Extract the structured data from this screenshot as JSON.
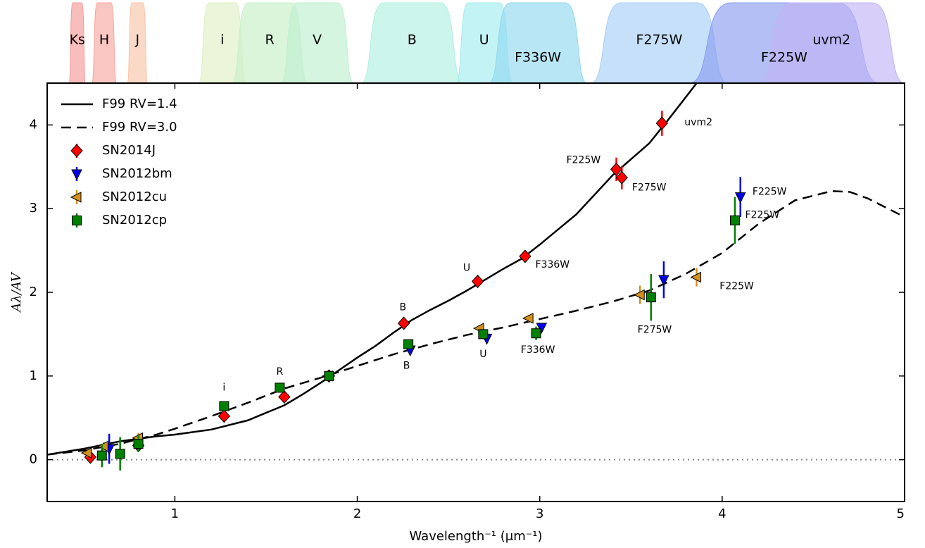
{
  "chart_data": {
    "type": "scatter",
    "x_label": "Wavelength⁻¹ (μm⁻¹)",
    "y_label": "Aλ/AV",
    "xlim": [
      0.3,
      5
    ],
    "ylim": [
      -0.5,
      4.5
    ],
    "xticks": [
      1,
      2,
      3,
      4,
      5
    ],
    "yticks": [
      0,
      1,
      2,
      3,
      4
    ],
    "reference_line": 0,
    "legend": "upper left",
    "filters": [
      {
        "name": "Ks",
        "range": [
          0.42,
          0.51
        ],
        "color": "#f49a9a"
      },
      {
        "name": "H",
        "range": [
          0.545,
          0.68
        ],
        "color": "#f6a8a0"
      },
      {
        "name": "J",
        "range": [
          0.74,
          0.85
        ],
        "color": "#f8c4a8"
      },
      {
        "name": "i",
        "range": [
          1.13,
          1.39
        ],
        "color": "#dff0c4"
      },
      {
        "name": "R",
        "range": [
          1.31,
          1.73
        ],
        "color": "#c8f0c8"
      },
      {
        "name": "V",
        "range": [
          1.58,
          1.98
        ],
        "color": "#bff0cf"
      },
      {
        "name": "B",
        "range": [
          2.02,
          2.58
        ],
        "color": "#b0f0e2"
      },
      {
        "name": "U",
        "range": [
          2.54,
          2.85
        ],
        "color": "#a4ecef"
      },
      {
        "name": "F336W",
        "range": [
          2.72,
          3.26
        ],
        "color": "#92d8ef"
      },
      {
        "name": "F275W",
        "range": [
          3.28,
          4.03
        ],
        "color": "#a8cff6"
      },
      {
        "name": "F225W",
        "range": [
          3.82,
          4.86
        ],
        "color": "#8a9cf0"
      },
      {
        "name": "uvm2",
        "range": [
          4.2,
          5.0
        ],
        "color": "#c2b4f6"
      }
    ],
    "series": [
      {
        "name": "F99 RV=1.4",
        "style": "solid",
        "color": "#000000",
        "x": [
          0.3,
          0.5,
          0.7,
          0.9,
          1.0,
          1.2,
          1.4,
          1.6,
          1.7,
          1.8,
          1.9,
          2.0,
          2.1,
          2.2,
          2.3,
          2.4,
          2.5,
          2.6,
          2.7,
          2.8,
          2.9,
          3.0,
          3.2,
          3.4,
          3.6,
          3.7,
          3.8,
          3.86
        ],
        "values": [
          0.06,
          0.13,
          0.22,
          0.28,
          0.3,
          0.36,
          0.47,
          0.65,
          0.78,
          0.92,
          1.07,
          1.22,
          1.36,
          1.52,
          1.67,
          1.79,
          1.9,
          2.02,
          2.15,
          2.28,
          2.4,
          2.57,
          2.93,
          3.4,
          3.78,
          4.05,
          4.33,
          4.5
        ]
      },
      {
        "name": "F99 RV=3.0",
        "style": "dashed",
        "color": "#000000",
        "x": [
          0.3,
          0.5,
          0.7,
          0.9,
          1.0,
          1.2,
          1.4,
          1.6,
          1.8,
          2.0,
          2.2,
          2.4,
          2.6,
          2.8,
          3.0,
          3.2,
          3.4,
          3.6,
          3.8,
          4.0,
          4.2,
          4.4,
          4.6,
          4.7,
          4.8,
          5.0
        ],
        "values": [
          0.06,
          0.11,
          0.19,
          0.3,
          0.37,
          0.52,
          0.68,
          0.85,
          0.98,
          1.12,
          1.26,
          1.38,
          1.49,
          1.58,
          1.68,
          1.78,
          1.89,
          2.02,
          2.22,
          2.47,
          2.82,
          3.1,
          3.21,
          3.2,
          3.12,
          2.9
        ]
      },
      {
        "name": "SN2014J",
        "marker": "diamond",
        "color": "#ff0000",
        "x": [
          0.537,
          0.8,
          1.27,
          1.6,
          1.845,
          2.255,
          2.66,
          2.92,
          3.42,
          3.45,
          3.67
        ],
        "values": [
          0.03,
          0.17,
          0.52,
          0.75,
          1.0,
          1.63,
          2.13,
          2.43,
          3.47,
          3.37,
          4.02
        ],
        "errors": [
          0.06,
          0.04,
          0.03,
          0.03,
          0.02,
          0.04,
          0.04,
          0.04,
          0.14,
          0.14,
          0.15
        ]
      },
      {
        "name": "SN2012bm",
        "marker": "triangle-down",
        "color": "#0000ee",
        "x": [
          0.64,
          2.29,
          2.71,
          3.01,
          3.68,
          4.1
        ],
        "values": [
          0.13,
          1.31,
          1.45,
          1.58,
          2.15,
          3.14
        ],
        "errors": [
          0.18,
          0.04,
          0.05,
          0.05,
          0.22,
          0.24
        ]
      },
      {
        "name": "SN2012cu",
        "marker": "triangle-left",
        "color": "#d4901c",
        "x": [
          0.52,
          0.61,
          0.8,
          1.84,
          2.67,
          2.94,
          3.55,
          3.86
        ],
        "values": [
          0.08,
          0.16,
          0.26,
          1.0,
          1.57,
          1.69,
          1.97,
          2.18
        ],
        "errors": [
          0.05,
          0.05,
          0.06,
          0.02,
          0.04,
          0.04,
          0.11,
          0.11
        ]
      },
      {
        "name": "SN2012cp",
        "marker": "square",
        "color": "#008000",
        "x": [
          0.6,
          0.7,
          0.8,
          1.27,
          1.575,
          1.845,
          2.28,
          2.69,
          2.98,
          3.61,
          4.07
        ],
        "values": [
          0.05,
          0.07,
          0.19,
          0.64,
          0.86,
          1.0,
          1.38,
          1.5,
          1.51,
          1.94,
          2.86
        ],
        "errors": [
          0.14,
          0.2,
          0.1,
          0.05,
          0.04,
          0.02,
          0.04,
          0.06,
          0.08,
          0.28,
          0.28
        ]
      }
    ],
    "annotations": [
      {
        "text": "uvm2",
        "x": 3.87,
        "y": 4.03
      },
      {
        "text": "F225W",
        "x": 3.24,
        "y": 3.58
      },
      {
        "text": "F275W",
        "x": 3.6,
        "y": 3.25
      },
      {
        "text": "F336W",
        "x": 3.07,
        "y": 2.33
      },
      {
        "text": "U",
        "x": 2.6,
        "y": 2.29
      },
      {
        "text": "B",
        "x": 2.25,
        "y": 1.82
      },
      {
        "text": "R",
        "x": 1.575,
        "y": 1.05
      },
      {
        "text": "i",
        "x": 1.27,
        "y": 0.86
      },
      {
        "text": "B",
        "x": 2.27,
        "y": 1.12
      },
      {
        "text": "U",
        "x": 2.69,
        "y": 1.26
      },
      {
        "text": "F336W",
        "x": 2.99,
        "y": 1.31
      },
      {
        "text": "F275W",
        "x": 3.63,
        "y": 1.55
      },
      {
        "text": "F225W",
        "x": 4.08,
        "y": 2.07
      },
      {
        "text": "F225W",
        "x": 4.26,
        "y": 3.2
      },
      {
        "text": "F225W",
        "x": 4.22,
        "y": 2.92
      }
    ]
  }
}
